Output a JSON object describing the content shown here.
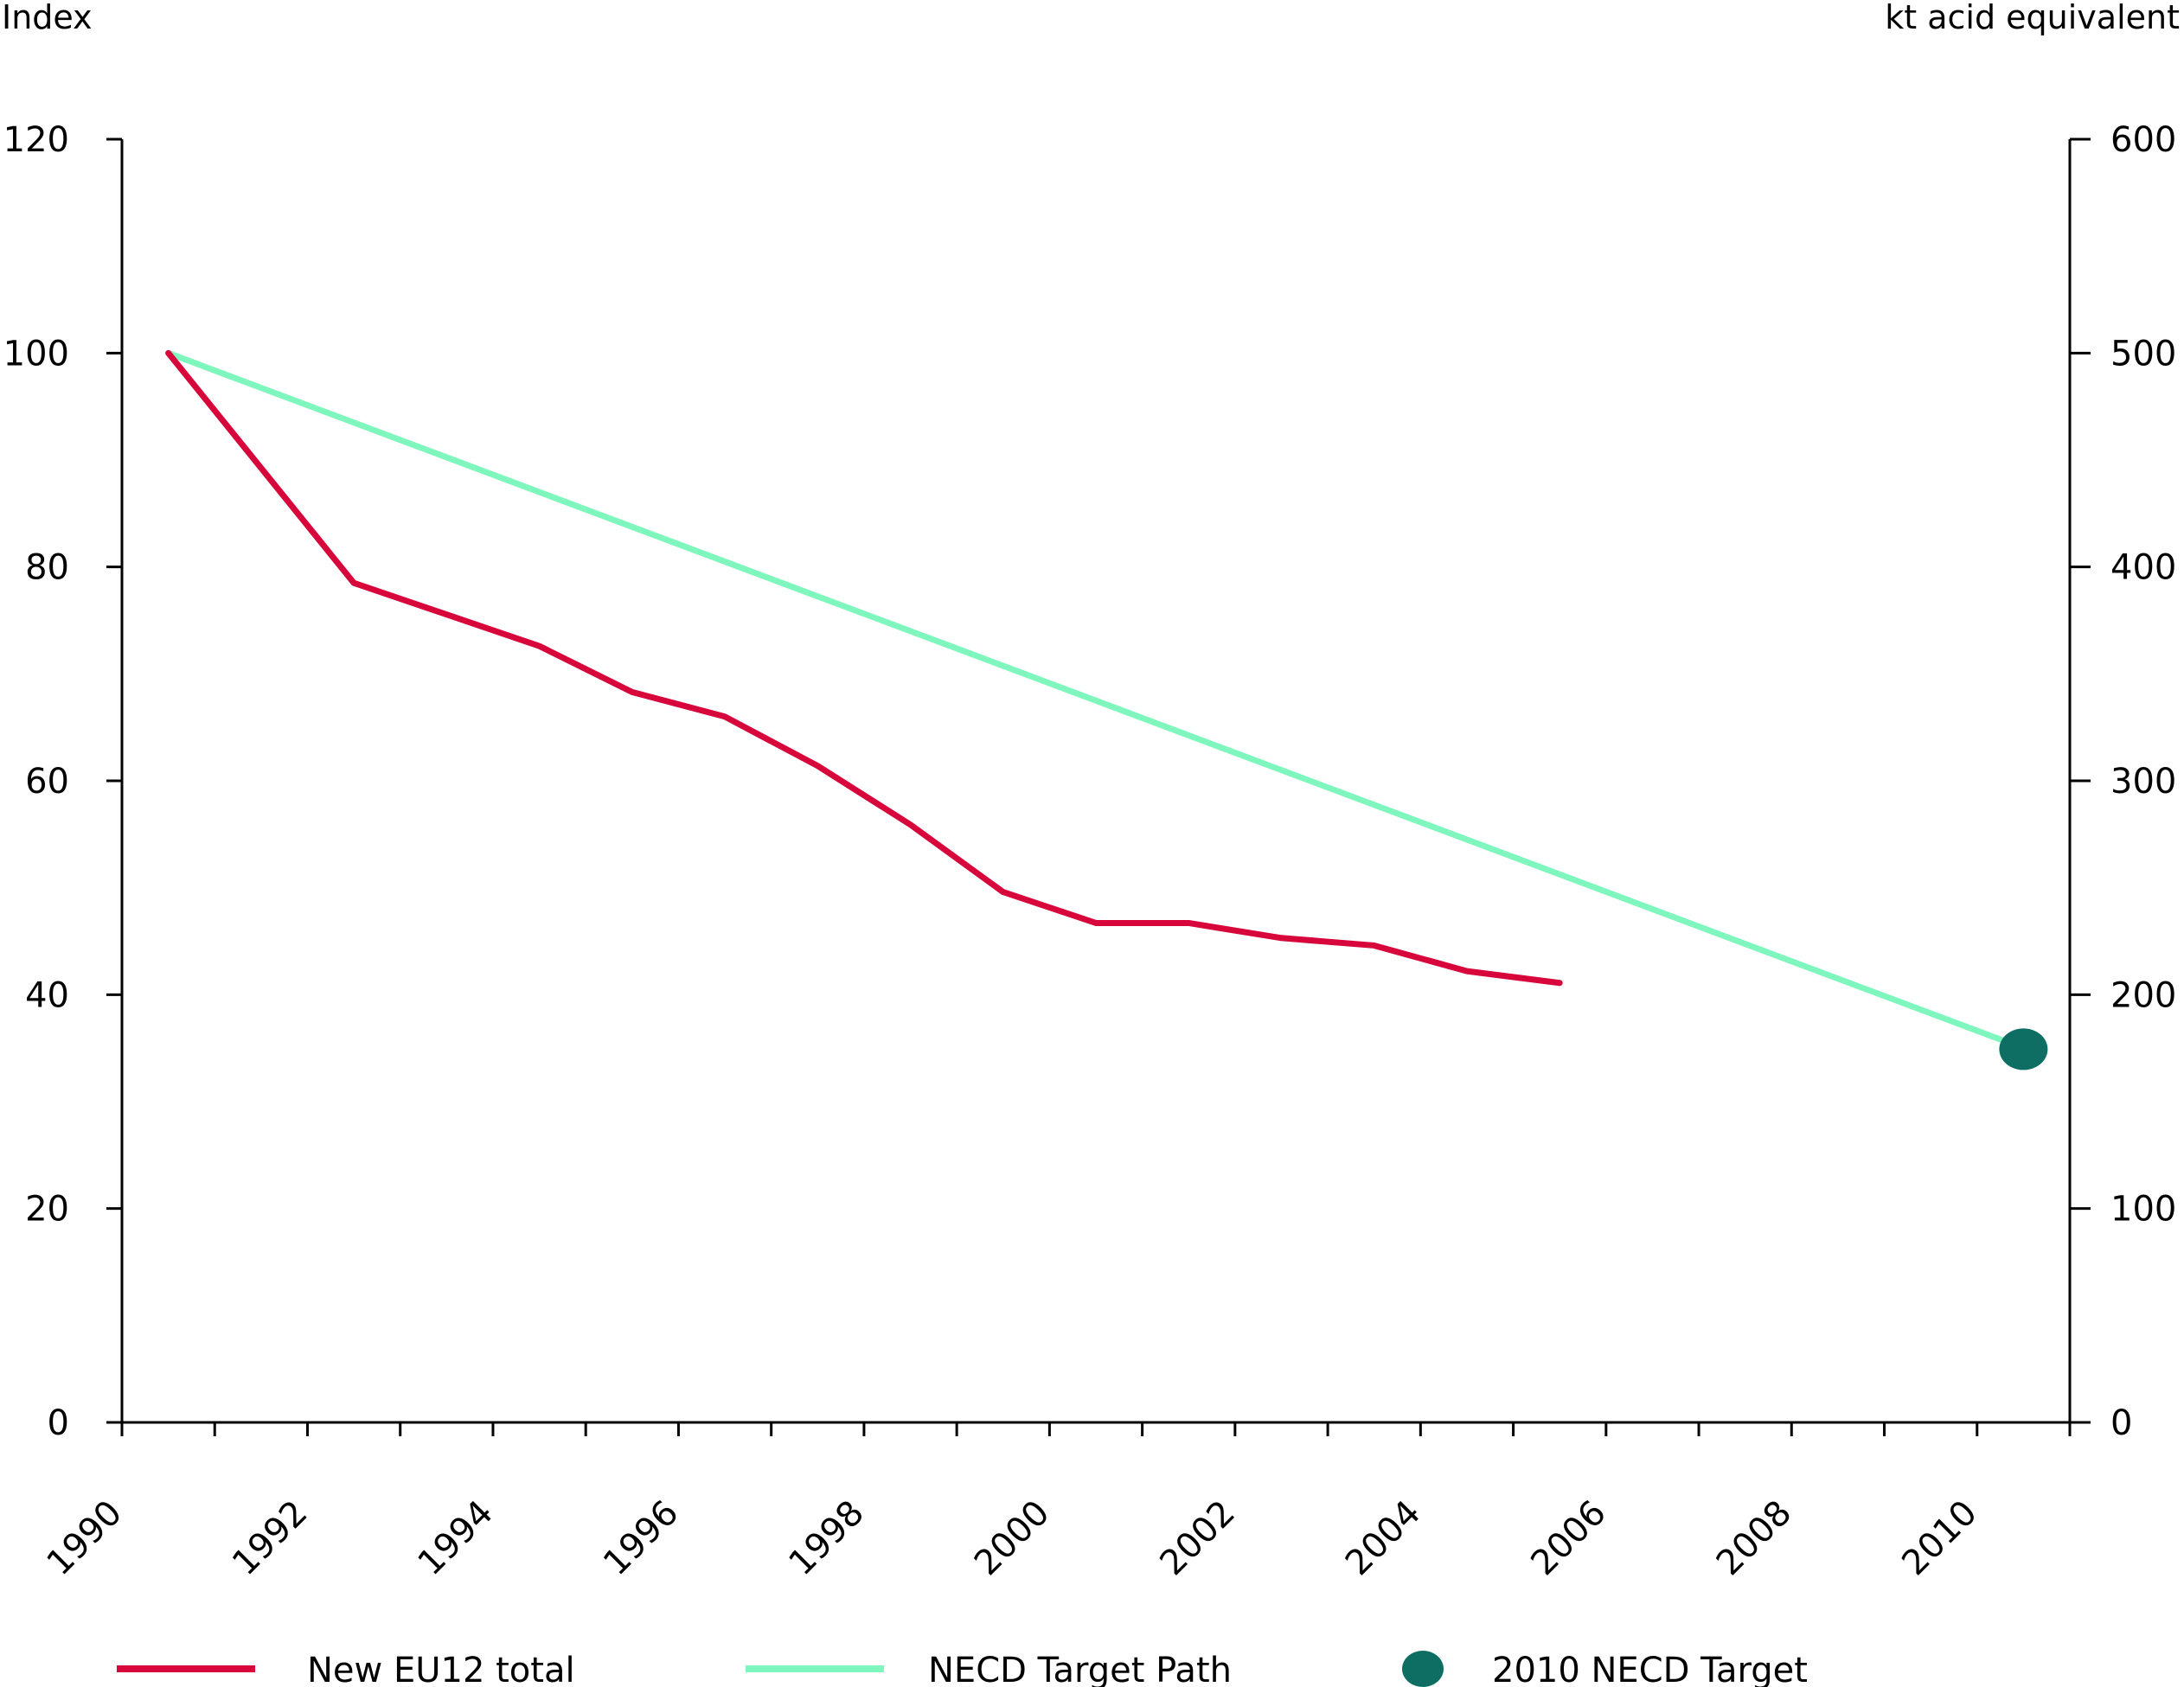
{
  "chart_data": {
    "type": "line",
    "y_left_label": "Index",
    "y_right_label": "kt acid equivalent",
    "x_ticks": [
      "1990",
      "1992",
      "1994",
      "1996",
      "1998",
      "2000",
      "2002",
      "2004",
      "2006",
      "2008",
      "2010"
    ],
    "y_left_ticks": [
      "0",
      "20",
      "40",
      "60",
      "80",
      "100",
      "120"
    ],
    "y_right_ticks": [
      "0",
      "100",
      "200",
      "300",
      "400",
      "500",
      "600"
    ],
    "xlim": [
      1990,
      2011
    ],
    "ylim_left": [
      0,
      120
    ],
    "ylim_right": [
      0,
      600
    ],
    "grid": false,
    "legend_position": "bottom",
    "series": [
      {
        "name": "New EU12 total",
        "kind": "line",
        "color": "#d7063b",
        "x": [
          1990.5,
          1992.5,
          1994.5,
          1995.5,
          1996.5,
          1997.5,
          1998.5,
          1999.5,
          2000.5,
          2001.5,
          2002.5,
          2003.5,
          2004.5,
          2005.5
        ],
        "y": [
          100,
          78.5,
          72.6,
          68.3,
          66.0,
          61.4,
          55.9,
          49.6,
          46.7,
          46.7,
          45.3,
          44.6,
          42.2,
          41.1
        ]
      },
      {
        "name": "NECD Target Path",
        "kind": "line",
        "color": "#7ff6be",
        "x": [
          1990.5,
          2010.5
        ],
        "y": [
          100,
          35
        ]
      },
      {
        "name": "2010 NECD Target",
        "kind": "point",
        "color": "#0f6e63",
        "x": [
          2010.5
        ],
        "y": [
          34.9
        ]
      }
    ]
  }
}
